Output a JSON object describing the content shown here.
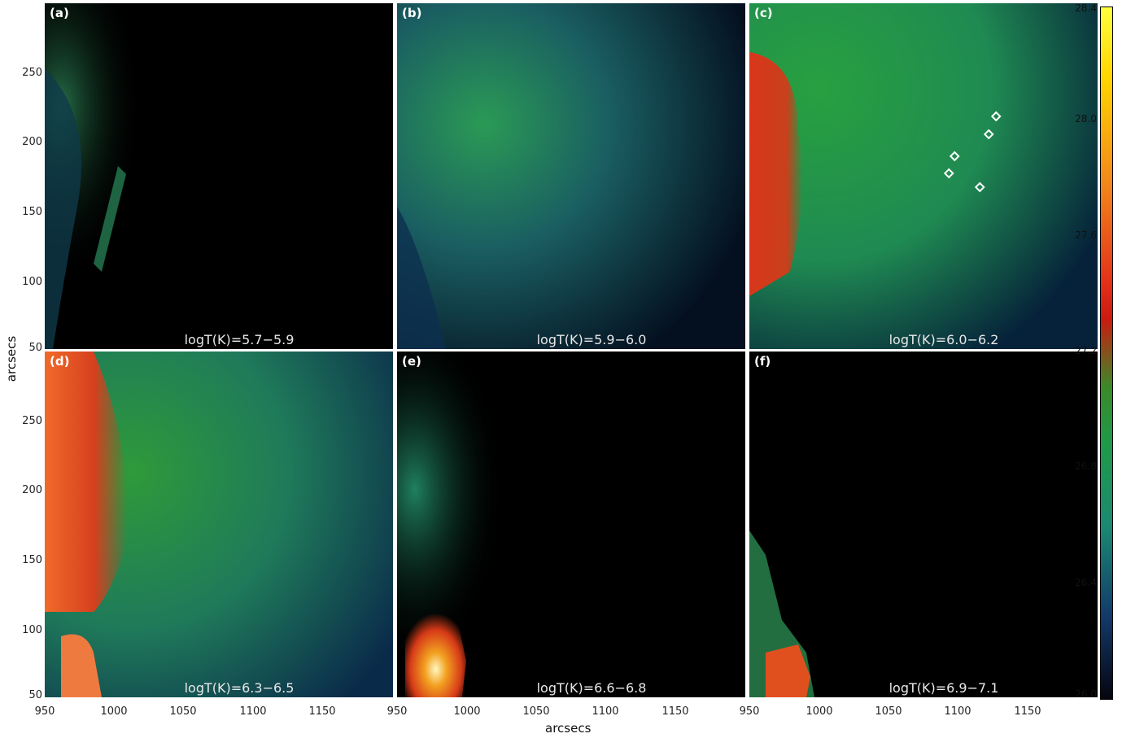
{
  "panels": [
    {
      "label": "(a)",
      "temp_range": "logT(K)=5.7−5.9"
    },
    {
      "label": "(b)",
      "temp_range": "logT(K)=5.9−6.0"
    },
    {
      "label": "(c)",
      "temp_range": "logT(K)=6.0−6.2"
    },
    {
      "label": "(d)",
      "temp_range": "logT(K)=6.3−6.5"
    },
    {
      "label": "(e)",
      "temp_range": "logT(K)=6.6−6.8"
    },
    {
      "label": "(f)",
      "temp_range": "logT(K)=6.9−7.1"
    }
  ],
  "y_axis": {
    "label": "arcsecs",
    "ticks": [
      "250",
      "200",
      "150",
      "100",
      "50"
    ]
  },
  "x_axis": {
    "label": "arcsecs",
    "ticks": [
      "950",
      "1000",
      "1050",
      "1100",
      "1150"
    ]
  },
  "colorbar": {
    "ticks": [
      "28.4",
      "28.0",
      "27.6",
      "27.2",
      "26.8",
      "26.4",
      "26.0"
    ],
    "range": [
      26.0,
      28.4
    ]
  },
  "colors": {
    "hot": "#e0321a",
    "mid": "#1f9a3c",
    "cool": "#0a2a4a",
    "peak": "#fff700"
  }
}
